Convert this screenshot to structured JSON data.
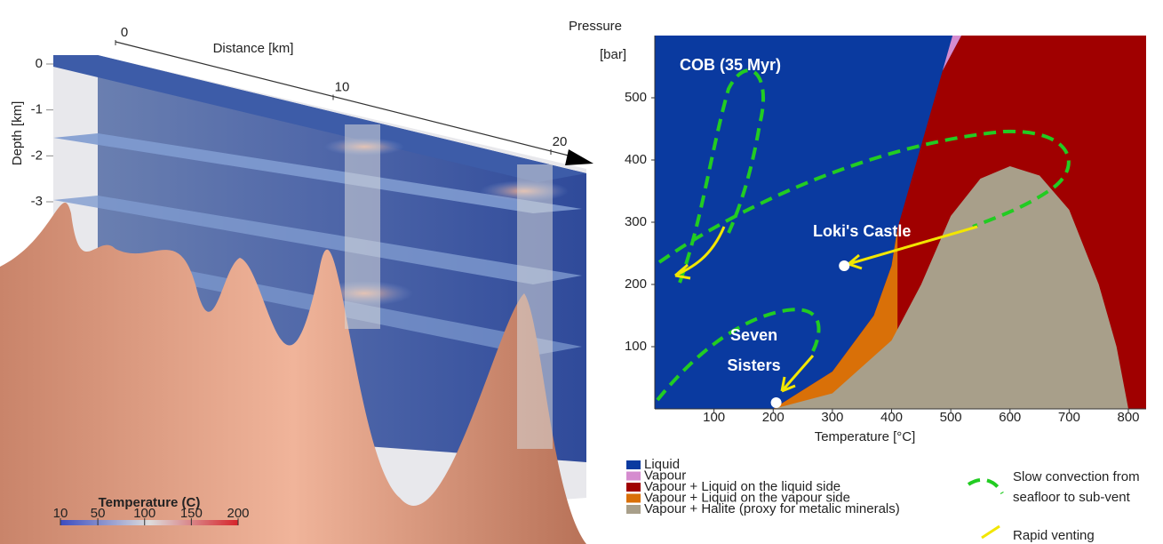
{
  "chart_data": [
    {
      "type": "volume-render",
      "x_label": "Distance [km]",
      "y_label": "Depth [km]",
      "xlim": [
        0,
        20
      ],
      "xticks": [
        0,
        10,
        20
      ],
      "ylim": [
        0,
        -3
      ],
      "yticks": [
        0,
        -1,
        -2,
        -3
      ],
      "colorbar": {
        "label": "Temperature (C)",
        "lim": [
          10,
          200
        ],
        "ticks": [
          10,
          50,
          100,
          150,
          200
        ],
        "colors": [
          "#3b4cc0",
          "#dddddd",
          "#d6242a"
        ]
      }
    },
    {
      "type": "phase-diagram",
      "x_label": "Temperature [°C]",
      "y_label": [
        "Pressure",
        "[bar]"
      ],
      "xlim": [
        0,
        830
      ],
      "ylim": [
        0,
        600
      ],
      "xticks": [
        100,
        200,
        300,
        400,
        500,
        600,
        700,
        800
      ],
      "yticks": [
        100,
        200,
        300,
        400,
        500
      ],
      "regions": [
        {
          "name": "Liquid",
          "color": "#0a3aa0",
          "x": [
            0,
            830,
            830,
            0
          ],
          "y": [
            0,
            0,
            600,
            600
          ]
        },
        {
          "name": "Vapour",
          "color": "#d58ccf",
          "x": [
            486,
            503,
            518
          ],
          "y": [
            543,
            600,
            600
          ]
        },
        {
          "name": "Vapour + Liquid on the liquid side",
          "color": "#a00000",
          "x": [
            200,
            300,
            370,
            400,
            410,
            486,
            518,
            830,
            830
          ],
          "y": [
            0,
            60,
            150,
            230,
            290,
            543,
            600,
            600,
            0
          ]
        },
        {
          "name": "Vapour + Liquid on the vapour side",
          "color": "#d97008",
          "x": [
            200,
            300,
            370,
            400,
            410,
            410
          ],
          "y": [
            0,
            60,
            150,
            230,
            290,
            0
          ]
        },
        {
          "name": "Vapour + Halite (proxy for metalic minerals)",
          "color": "#a89f8a",
          "x": [
            200,
            300,
            400,
            450,
            500,
            550,
            600,
            650,
            700,
            750,
            780,
            800
          ],
          "y": [
            0,
            25,
            110,
            200,
            310,
            370,
            390,
            375,
            320,
            200,
            100,
            0
          ]
        }
      ],
      "points": [
        {
          "label": "Loki's Castle",
          "x": 320,
          "y": 230
        },
        {
          "label": [
            "Seven",
            "Sisters"
          ],
          "x": 205,
          "y": 10
        }
      ],
      "annotation": "COB (35 Myr)",
      "path_legend": [
        {
          "label": [
            "Slow convection from",
            "seafloor to sub-vent"
          ],
          "color": "#22cc22"
        },
        {
          "label": "Rapid venting",
          "color": "#f2e600"
        }
      ]
    }
  ]
}
